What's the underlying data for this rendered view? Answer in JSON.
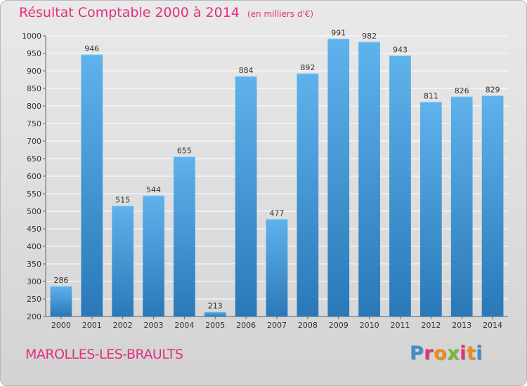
{
  "header": {
    "title": "Résultat Comptable 2000 à 2014",
    "subtitle": "(en milliers d'€)"
  },
  "footer": {
    "commune": "MAROLLES-LES-BRAULTS",
    "logo_letters": [
      {
        "char": "P",
        "color": "#3a8fd0"
      },
      {
        "char": "r",
        "color": "#e0317d"
      },
      {
        "char": "o",
        "color": "#f08a1c"
      },
      {
        "char": "x",
        "color": "#7cb82f"
      },
      {
        "char": "i",
        "color": "#e0317d"
      },
      {
        "char": "t",
        "color": "#f08a1c"
      },
      {
        "char": "i",
        "color": "#3a8fd0"
      }
    ]
  },
  "colors": {
    "title": "#e0317d",
    "bar_top": "#5fb2ec",
    "bar_bottom": "#2a78b8",
    "grid": "#ffffff"
  },
  "chart_data": {
    "type": "bar",
    "title": "Résultat Comptable 2000 à 2014",
    "subtitle": "(en milliers d'€)",
    "xlabel": "",
    "ylabel": "",
    "categories": [
      "2000",
      "2001",
      "2002",
      "2003",
      "2004",
      "2005",
      "2006",
      "2007",
      "2008",
      "2009",
      "2010",
      "2011",
      "2012",
      "2013",
      "2014"
    ],
    "values": [
      286,
      946,
      515,
      544,
      655,
      213,
      884,
      477,
      892,
      991,
      982,
      943,
      811,
      826,
      829
    ],
    "ylim": [
      200,
      1000
    ],
    "yticks": [
      200,
      250,
      300,
      350,
      400,
      450,
      500,
      550,
      600,
      650,
      700,
      750,
      800,
      850,
      900,
      950,
      1000
    ],
    "grid": true,
    "data_labels": true
  }
}
